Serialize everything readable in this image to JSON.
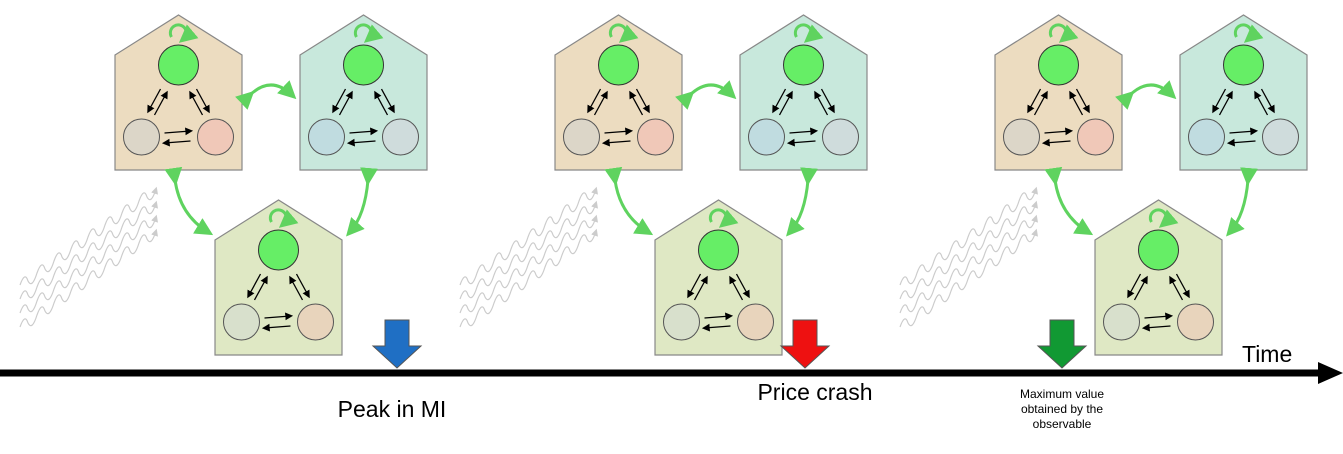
{
  "timeline": {
    "label": "Time"
  },
  "events": [
    {
      "lines": [
        "Peak in MI"
      ]
    },
    {
      "lines": [
        "Price crash"
      ]
    },
    {
      "lines": [
        "Maximum value",
        "obtained by the",
        "observable"
      ]
    }
  ]
}
